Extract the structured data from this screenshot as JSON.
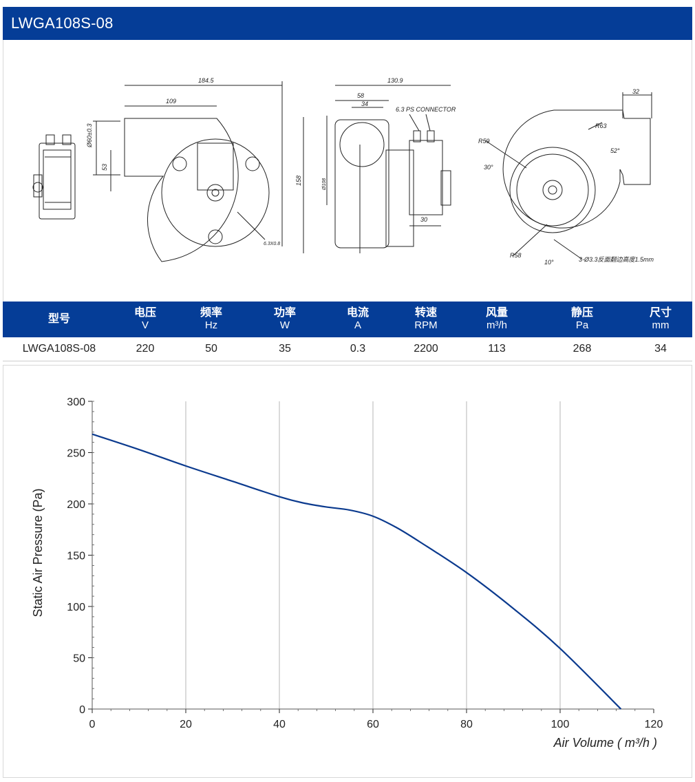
{
  "header": {
    "title": "LWGA108S-08"
  },
  "drawing": {
    "dims": {
      "overall_width": "184.5",
      "inlet_offset": "109",
      "outlet_size": "Ø60±0.3",
      "outlet_height": "53",
      "height": "158",
      "terminal": "6.3X0.8",
      "depth": "130.9",
      "depth_a": "58",
      "depth_b": "34",
      "connector": "6.3 PS CONNECTOR",
      "impeller_dia": "Ø108",
      "motor_width": "30",
      "outlet_width": "32",
      "r63": "R63",
      "r59": "R59",
      "r58": "R58",
      "ang52": "52°",
      "ang30": "30°",
      "ang10": "10°",
      "holes_note": "3-Ø3.3反面翻边高度1.5mm"
    }
  },
  "spec_table": {
    "headers": [
      {
        "label": "型号",
        "unit": ""
      },
      {
        "label": "电压",
        "unit": "V"
      },
      {
        "label": "频率",
        "unit": "Hz"
      },
      {
        "label": "功率",
        "unit": "W"
      },
      {
        "label": "电流",
        "unit": "A"
      },
      {
        "label": "转速",
        "unit": "RPM"
      },
      {
        "label": "风量",
        "unit": "m³/h"
      },
      {
        "label": "静压",
        "unit": "Pa"
      },
      {
        "label": "尺寸",
        "unit": "mm"
      }
    ],
    "row": [
      "LWGA108S-08",
      "220",
      "50",
      "35",
      "0.3",
      "2200",
      "113",
      "268",
      "34"
    ]
  },
  "chart_data": {
    "type": "line",
    "xlabel": "Air Volume ( m³/h )",
    "ylabel": "Static Air Pressure  (Pa)",
    "xlim": [
      0,
      120
    ],
    "ylim": [
      0,
      300
    ],
    "xticks": [
      "0",
      "20",
      "40",
      "60",
      "80",
      "100",
      "120"
    ],
    "yticks": [
      "0",
      "50",
      "100",
      "150",
      "200",
      "250",
      "300"
    ],
    "grid": "vertical",
    "series": [
      {
        "color": "#0b3a8e",
        "x": [
          0,
          10,
          20,
          30,
          40,
          45,
          50,
          55,
          60,
          65,
          70,
          80,
          90,
          100,
          113
        ],
        "y": [
          268,
          253,
          237,
          222,
          207,
          201,
          197,
          194,
          188,
          177,
          163,
          133,
          98,
          59,
          0
        ]
      }
    ]
  }
}
